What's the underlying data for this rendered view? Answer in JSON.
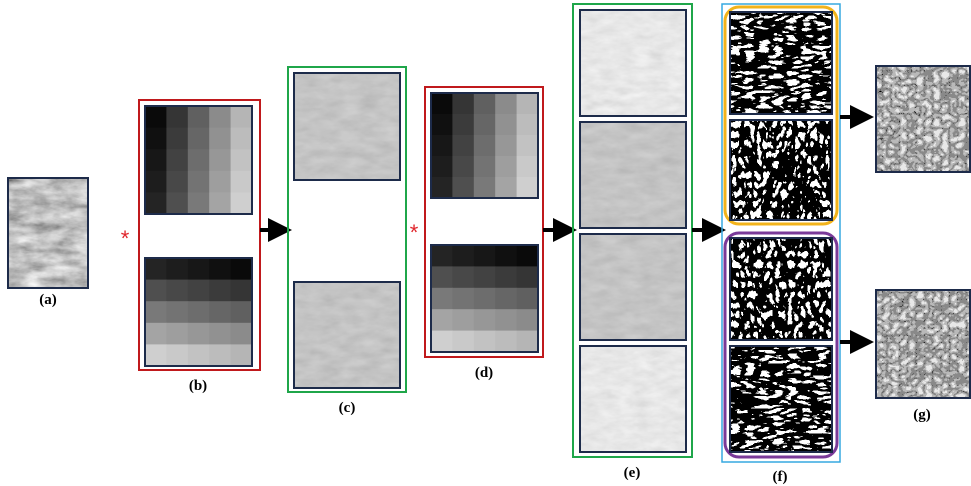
{
  "labels": {
    "a": "(a)",
    "b": "(b)",
    "c": "(c)",
    "d": "(d)",
    "e": "(e)",
    "f": "(f)",
    "g": "(g)"
  },
  "operators": [
    "*",
    "*"
  ]
}
